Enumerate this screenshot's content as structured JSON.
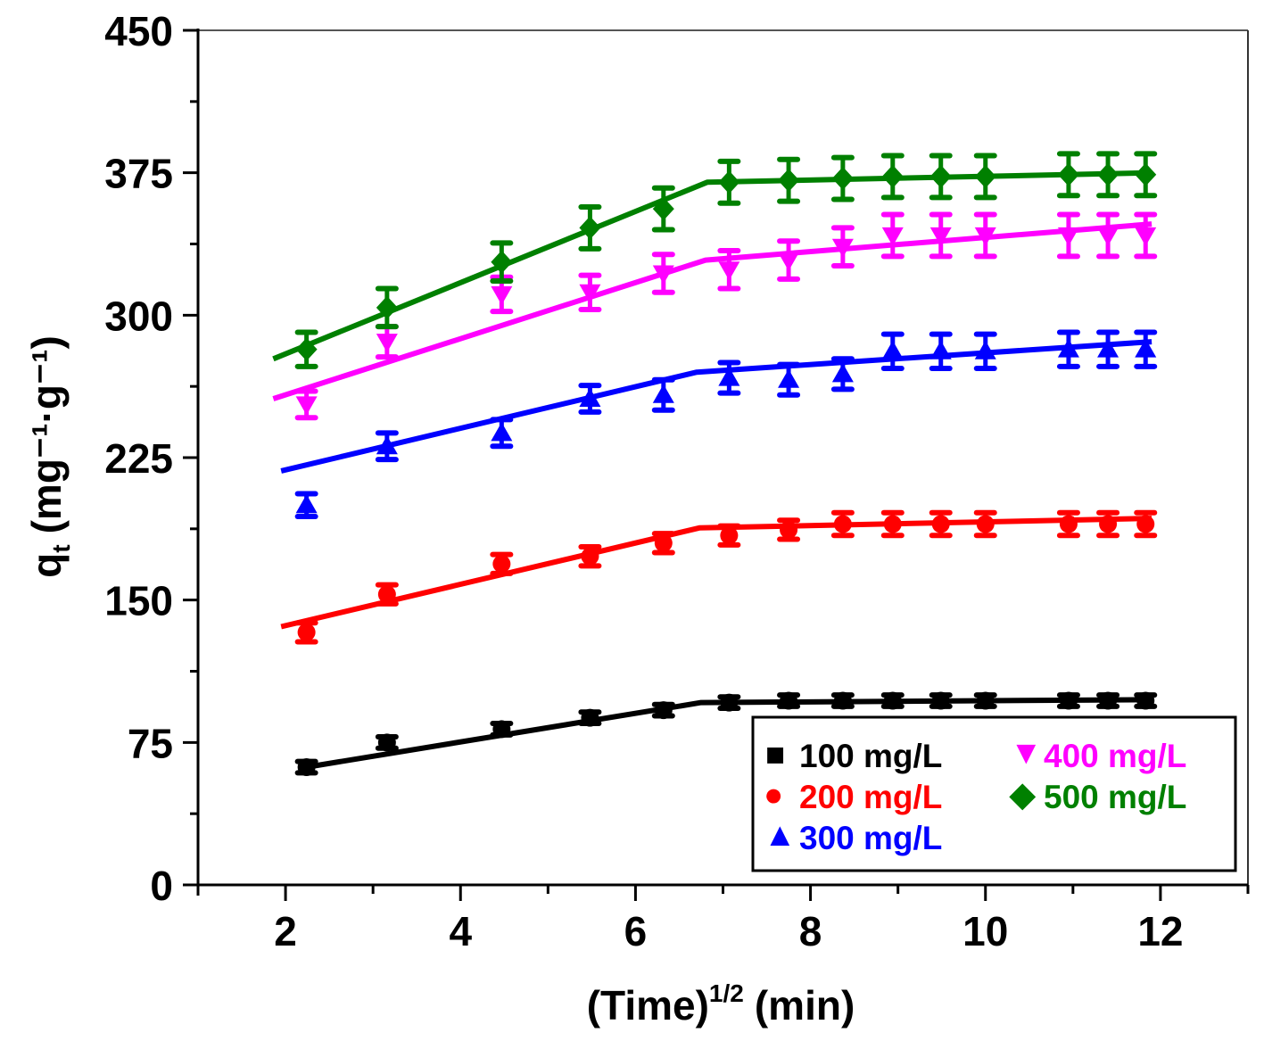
{
  "chart_data": {
    "type": "scatter",
    "title": "",
    "xlabel": "(Time)",
    "xlabel_sup": "1/2",
    "xlabel_unit": "(min)",
    "ylabel_main": "q",
    "ylabel_sub": "t",
    "ylabel_unit": "(mg⁻¹·g⁻¹)",
    "xlim": [
      1,
      13
    ],
    "ylim": [
      0,
      450
    ],
    "xticks": [
      2,
      4,
      6,
      8,
      10,
      12
    ],
    "xtick_labels": [
      "2",
      "4",
      "6",
      "8",
      "10",
      "12"
    ],
    "xminor": [
      1,
      3,
      5,
      7,
      9,
      11,
      13
    ],
    "yticks": [
      0,
      75,
      150,
      225,
      300,
      375,
      450
    ],
    "ytick_labels": [
      "0",
      "75",
      "150",
      "225",
      "300",
      "375",
      "450"
    ],
    "yminor": [
      37.5,
      112.5,
      187.5,
      262.5,
      337.5,
      412.5
    ],
    "grid": false,
    "legend_position": "bottom-right",
    "x": [
      2.24,
      3.16,
      4.47,
      5.48,
      6.32,
      7.07,
      7.75,
      8.37,
      8.94,
      9.49,
      10.0,
      10.95,
      11.4,
      11.83
    ],
    "series": [
      {
        "name": "100 mg/L",
        "color": "#000000",
        "marker": "square",
        "legend_glyph": "■",
        "values": [
          62,
          75,
          82,
          88,
          92,
          96,
          97,
          97,
          97,
          97,
          97,
          97,
          97,
          97
        ],
        "errors": [
          3,
          3,
          3,
          3,
          3,
          3,
          3,
          3,
          3,
          3,
          3,
          3,
          3,
          3
        ],
        "fit_line": [
          [
            2.24,
            62
          ],
          [
            6.75,
            96
          ],
          [
            11.83,
            97.5
          ]
        ]
      },
      {
        "name": "200 mg/L",
        "color": "#ff0000",
        "marker": "circle",
        "legend_glyph": "●",
        "values": [
          133,
          153,
          169,
          173,
          180,
          184,
          187,
          190,
          190,
          190,
          190,
          190,
          190,
          190
        ],
        "errors": [
          5,
          5,
          5,
          5,
          5,
          5,
          5,
          6,
          6,
          6,
          6,
          6,
          6,
          6
        ],
        "fit_line": [
          [
            1.95,
            136
          ],
          [
            6.73,
            188
          ],
          [
            11.9,
            193
          ]
        ]
      },
      {
        "name": "300 mg/L",
        "color": "#0000ff",
        "marker": "triangle-up",
        "legend_glyph": "▲",
        "values": [
          200,
          231,
          238,
          256,
          258,
          267,
          266,
          269,
          281,
          281,
          281,
          282,
          282,
          282
        ],
        "errors": [
          6,
          7,
          7,
          7,
          8,
          8,
          8,
          8,
          9,
          9,
          9,
          9,
          9,
          9
        ],
        "fit_line": [
          [
            1.95,
            218
          ],
          [
            6.7,
            270
          ],
          [
            11.9,
            286
          ]
        ]
      },
      {
        "name": "400 mg/L",
        "color": "#ff00ff",
        "marker": "triangle-down",
        "legend_glyph": "▼",
        "values": [
          253,
          286,
          311,
          312,
          322,
          324,
          329,
          336,
          342,
          342,
          342,
          342,
          342,
          342
        ],
        "errors": [
          7,
          8,
          9,
          9,
          10,
          10,
          10,
          10,
          11,
          11,
          11,
          11,
          11,
          11
        ],
        "fit_line": [
          [
            1.86,
            256
          ],
          [
            6.8,
            329
          ],
          [
            11.9,
            348
          ]
        ]
      },
      {
        "name": "500 mg/L",
        "color": "#008000",
        "marker": "diamond",
        "legend_glyph": "◆",
        "values": [
          282,
          304,
          328,
          346,
          356,
          370,
          371,
          372,
          373,
          373,
          373,
          374,
          374,
          374
        ],
        "errors": [
          9,
          10,
          10,
          11,
          11,
          11,
          11,
          11,
          11,
          11,
          11,
          11,
          11,
          11
        ],
        "fit_line": [
          [
            1.86,
            277
          ],
          [
            6.82,
            370
          ],
          [
            11.9,
            375
          ]
        ]
      }
    ]
  }
}
